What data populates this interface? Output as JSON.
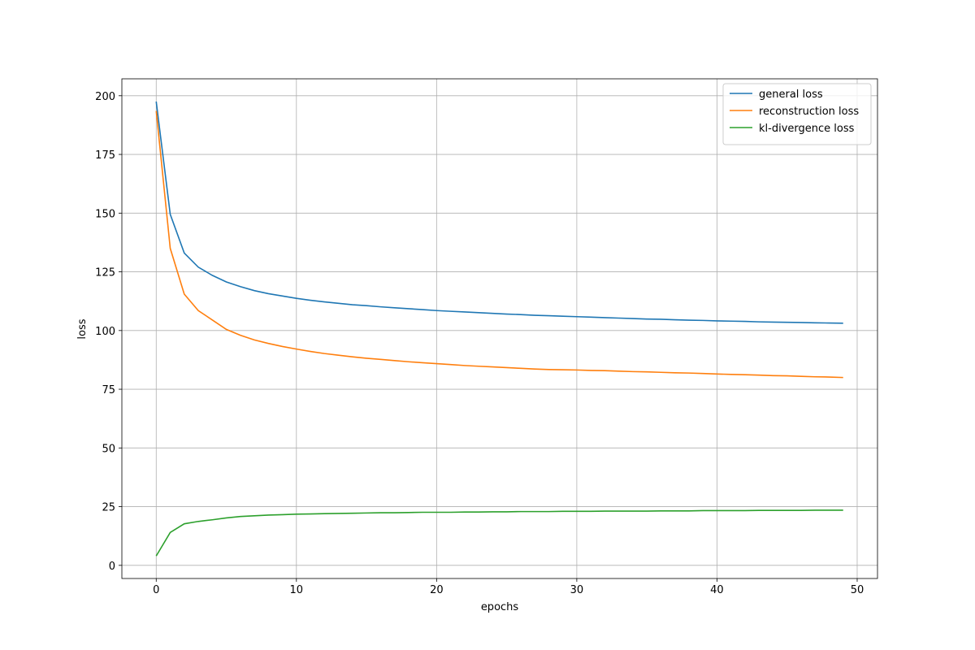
{
  "chart_data": {
    "type": "line",
    "x_label": "epochs",
    "y_label": "loss",
    "x": [
      0,
      1,
      2,
      3,
      4,
      5,
      6,
      7,
      8,
      9,
      10,
      11,
      12,
      13,
      14,
      15,
      16,
      17,
      18,
      19,
      20,
      21,
      22,
      23,
      24,
      25,
      26,
      27,
      28,
      29,
      30,
      31,
      32,
      33,
      34,
      35,
      36,
      37,
      38,
      39,
      40,
      41,
      42,
      43,
      44,
      45,
      46,
      47,
      48,
      49
    ],
    "series": [
      {
        "name": "general loss",
        "color": "#1f77b4",
        "values": [
          197.5,
          149.5,
          133,
          127,
          123.5,
          120.7,
          118.7,
          117,
          115.7,
          114.7,
          113.7,
          112.9,
          112.2,
          111.6,
          111.0,
          110.6,
          110.1,
          109.7,
          109.3,
          108.9,
          108.5,
          108.2,
          107.9,
          107.6,
          107.3,
          107.0,
          106.8,
          106.5,
          106.3,
          106.1,
          105.9,
          105.7,
          105.5,
          105.3,
          105.1,
          104.9,
          104.8,
          104.6,
          104.4,
          104.3,
          104.1,
          104.0,
          103.9,
          103.7,
          103.6,
          103.5,
          103.4,
          103.3,
          103.2,
          103.1
        ]
      },
      {
        "name": "reconstruction loss",
        "color": "#ff7f0e",
        "values": [
          193.5,
          135,
          115.5,
          108.5,
          104.5,
          100.5,
          98,
          96,
          94.5,
          93.2,
          92.1,
          91.1,
          90.2,
          89.5,
          88.8,
          88.2,
          87.7,
          87.2,
          86.7,
          86.3,
          85.9,
          85.5,
          85.1,
          84.8,
          84.5,
          84.2,
          83.9,
          83.6,
          83.4,
          83.3,
          83.2,
          83.0,
          82.9,
          82.7,
          82.5,
          82.4,
          82.2,
          82.0,
          81.9,
          81.7,
          81.5,
          81.3,
          81.2,
          81.0,
          80.8,
          80.7,
          80.5,
          80.3,
          80.2,
          80.0
        ]
      },
      {
        "name": "kl-divergence loss",
        "color": "#2ca02c",
        "values": [
          4,
          14,
          17.7,
          18.7,
          19.4,
          20.2,
          20.8,
          21.1,
          21.4,
          21.6,
          21.8,
          21.9,
          22.0,
          22.1,
          22.2,
          22.3,
          22.4,
          22.4,
          22.5,
          22.6,
          22.6,
          22.6,
          22.7,
          22.7,
          22.8,
          22.8,
          22.9,
          22.9,
          22.9,
          23.0,
          23.0,
          23.0,
          23.1,
          23.1,
          23.1,
          23.1,
          23.2,
          23.2,
          23.2,
          23.3,
          23.3,
          23.3,
          23.3,
          23.4,
          23.4,
          23.4,
          23.4,
          23.5,
          23.5,
          23.5
        ]
      }
    ],
    "xlim": [
      -2.45,
      51.45
    ],
    "ylim": [
      -5.6,
      207.2
    ],
    "xticks": [
      0,
      10,
      20,
      30,
      40,
      50
    ],
    "yticks": [
      0,
      25,
      50,
      75,
      100,
      125,
      150,
      175,
      200
    ],
    "grid": true,
    "legend": "upper right"
  }
}
